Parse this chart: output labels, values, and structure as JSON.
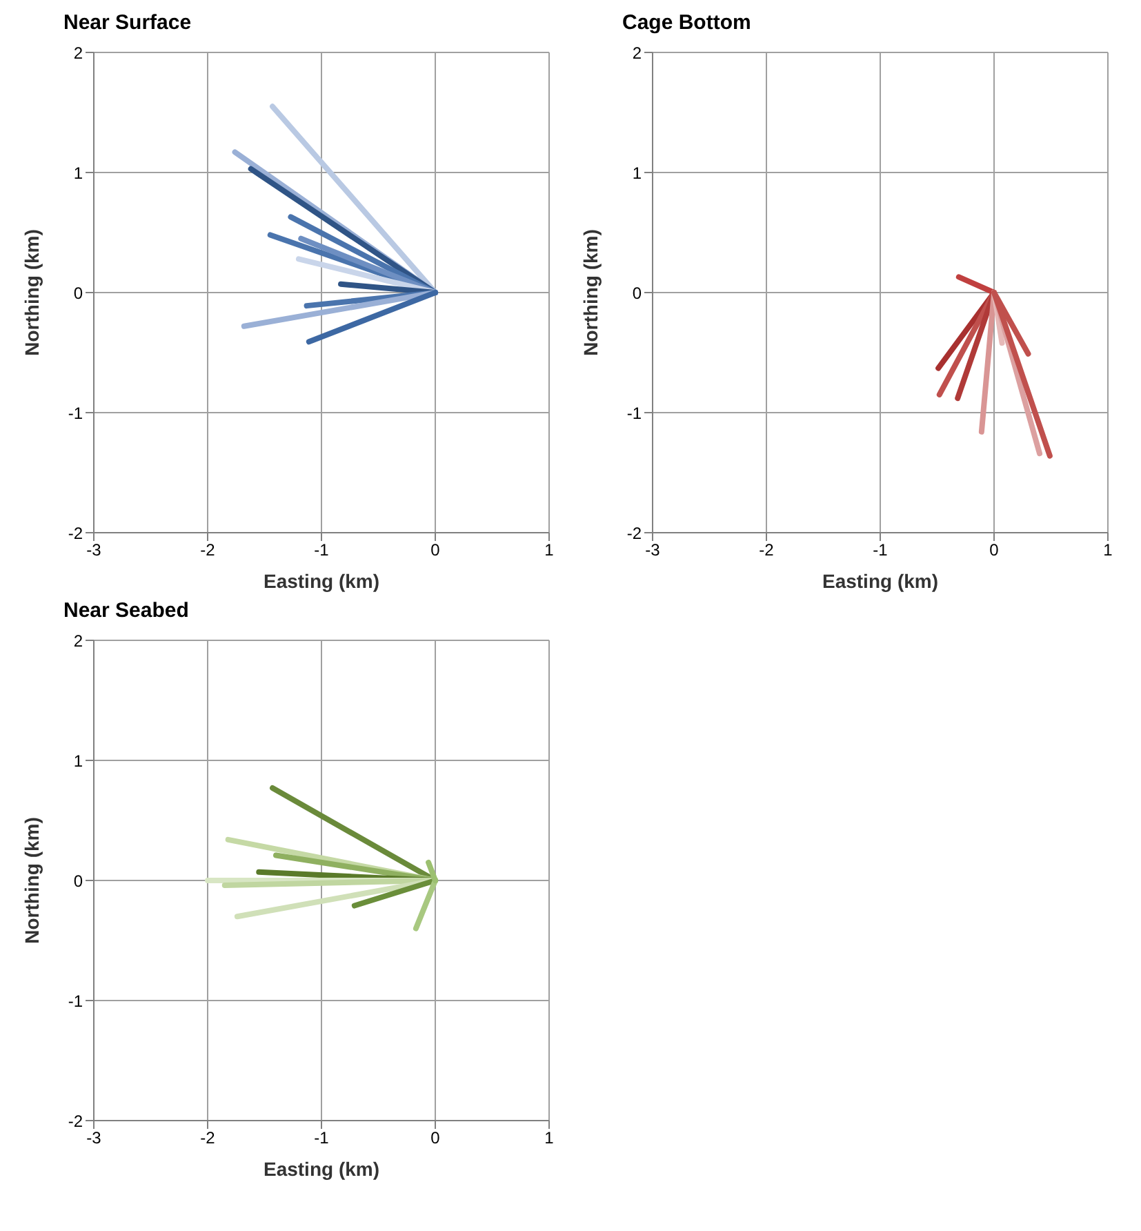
{
  "chart_data": [
    {
      "type": "line",
      "title": "Near Surface",
      "xlabel": "Easting (km)",
      "ylabel": "Northing (km)",
      "xlim": [
        -3,
        1
      ],
      "xticks": [
        -3,
        -2,
        -1,
        0,
        1
      ],
      "ylim": [
        -2,
        2
      ],
      "yticks": [
        -2,
        -1,
        0,
        1,
        2
      ],
      "grid": true,
      "marker": "none",
      "series": [
        {
          "color": "#b9c9e3",
          "x": [
            0,
            -1.43
          ],
          "values": [
            0,
            1.55
          ]
        },
        {
          "color": "#9ab0d6",
          "x": [
            0,
            -1.76
          ],
          "values": [
            0,
            1.17
          ]
        },
        {
          "color": "#2f5486",
          "x": [
            0,
            -1.62
          ],
          "values": [
            0,
            1.03
          ]
        },
        {
          "color": "#4a74ad",
          "x": [
            0,
            -1.27
          ],
          "values": [
            0,
            0.63
          ]
        },
        {
          "color": "#4a74ad",
          "x": [
            0,
            -1.45
          ],
          "values": [
            0,
            0.48
          ]
        },
        {
          "color": "#6e8fc2",
          "x": [
            0,
            -1.18
          ],
          "values": [
            0,
            0.45
          ]
        },
        {
          "color": "#c9d5ea",
          "x": [
            0,
            -1.2
          ],
          "values": [
            0,
            0.28
          ]
        },
        {
          "color": "#2f5486",
          "x": [
            0,
            -0.83
          ],
          "values": [
            0,
            0.07
          ]
        },
        {
          "color": "#4a74ad",
          "x": [
            0,
            -1.13
          ],
          "values": [
            0,
            -0.11
          ]
        },
        {
          "color": "#9ab0d6",
          "x": [
            0,
            -1.68
          ],
          "values": [
            0,
            -0.28
          ]
        },
        {
          "color": "#3d68a3",
          "x": [
            0,
            -1.11
          ],
          "values": [
            0,
            -0.41
          ]
        }
      ]
    },
    {
      "type": "line",
      "title": "Cage Bottom",
      "xlabel": "Easting (km)",
      "ylabel": "Northing (km)",
      "xlim": [
        -3,
        1
      ],
      "xticks": [
        -3,
        -2,
        -1,
        0,
        1
      ],
      "ylim": [
        -2,
        2
      ],
      "yticks": [
        -2,
        -1,
        0,
        1,
        2
      ],
      "grid": true,
      "marker": "none",
      "series": [
        {
          "color": "#c0403f",
          "x": [
            0,
            -0.31
          ],
          "values": [
            0,
            0.13
          ]
        },
        {
          "color": "#a8302f",
          "x": [
            0,
            -0.49
          ],
          "values": [
            0,
            -0.63
          ]
        },
        {
          "color": "#c0504d",
          "x": [
            0,
            -0.48
          ],
          "values": [
            0,
            -0.85
          ]
        },
        {
          "color": "#b03a38",
          "x": [
            0,
            -0.32
          ],
          "values": [
            0,
            -0.88
          ]
        },
        {
          "color": "#d99594",
          "x": [
            0,
            -0.11
          ],
          "values": [
            0,
            -1.16
          ]
        },
        {
          "color": "#c0504d",
          "x": [
            0,
            0.3
          ],
          "values": [
            0,
            -0.51
          ]
        },
        {
          "color": "#e6b9b8",
          "x": [
            0,
            0.07
          ],
          "values": [
            0,
            -0.42
          ]
        },
        {
          "color": "#dca0a0",
          "x": [
            0,
            0.4
          ],
          "values": [
            0,
            -1.34
          ]
        },
        {
          "color": "#c0504d",
          "x": [
            0,
            0.49
          ],
          "values": [
            0,
            -1.36
          ]
        }
      ]
    },
    {
      "type": "line",
      "title": "Near Seabed",
      "xlabel": "Easting (km)",
      "ylabel": "Northing (km)",
      "xlim": [
        -3,
        1
      ],
      "xticks": [
        -3,
        -2,
        -1,
        0,
        1
      ],
      "ylim": [
        -2,
        2
      ],
      "yticks": [
        -2,
        -1,
        0,
        1,
        2
      ],
      "grid": true,
      "marker": "none",
      "series": [
        {
          "color": "#6a8a3a",
          "x": [
            0,
            -1.43
          ],
          "values": [
            0,
            0.77
          ]
        },
        {
          "color": "#c5d9a5",
          "x": [
            0,
            -1.82
          ],
          "values": [
            0,
            0.34
          ]
        },
        {
          "color": "#8fb060",
          "x": [
            0,
            -1.4
          ],
          "values": [
            0,
            0.21
          ]
        },
        {
          "color": "#5a7a2a",
          "x": [
            0,
            -1.55
          ],
          "values": [
            0,
            0.07
          ]
        },
        {
          "color": "#d8e6c4",
          "x": [
            0,
            -2.0
          ],
          "values": [
            0,
            0.0
          ]
        },
        {
          "color": "#c0d6a0",
          "x": [
            0,
            -1.85
          ],
          "values": [
            0,
            -0.04
          ]
        },
        {
          "color": "#d0e0b8",
          "x": [
            0,
            -1.74
          ],
          "values": [
            0,
            -0.3
          ]
        },
        {
          "color": "#6a8e3a",
          "x": [
            0,
            -0.71
          ],
          "values": [
            0,
            -0.21
          ]
        },
        {
          "color": "#a8c880",
          "x": [
            0,
            -0.17
          ],
          "values": [
            0,
            -0.4
          ]
        },
        {
          "color": "#9cc070",
          "x": [
            0,
            -0.06
          ],
          "values": [
            0,
            0.15
          ]
        }
      ]
    }
  ]
}
